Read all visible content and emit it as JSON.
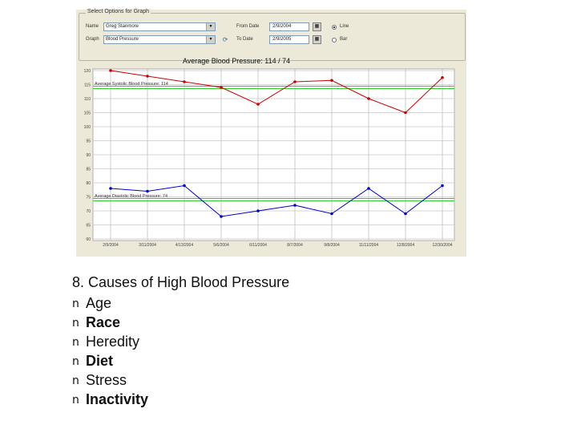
{
  "options": {
    "group_title": "Select Options for Graph",
    "name_label": "Name",
    "name_value": "Greg Stanmore",
    "graph_label": "Graph",
    "graph_value": "Blood Pressure",
    "from_label": "From Date",
    "from_value": "2/9/2004",
    "to_label": "To Date",
    "to_value": "2/9/2005",
    "line_label": "Line",
    "bar_label": "Bar",
    "selected_type": "Line",
    "icons": {
      "calendar": "calendar-icon",
      "refresh": "refresh-icon"
    }
  },
  "chart_data": {
    "type": "line",
    "title": "Average Blood Pressure: 114 / 74",
    "categories": [
      "2/9/2004",
      "3/11/2004",
      "4/13/2004",
      "5/6/2004",
      "6/11/2004",
      "8/7/2004",
      "9/8/2004",
      "11/11/2004",
      "12/8/2004",
      "12/30/2004"
    ],
    "x_index": [
      0,
      1,
      2,
      3,
      4,
      5,
      6,
      7,
      8,
      9
    ],
    "ylim": [
      60,
      120
    ],
    "yticks": [
      60,
      65,
      70,
      75,
      80,
      85,
      90,
      95,
      100,
      105,
      110,
      115,
      120
    ],
    "grid": true,
    "series": [
      {
        "key": "systolic",
        "color": "#cc0000",
        "values": [
          120,
          118,
          116,
          114,
          108,
          116,
          116.5,
          110,
          105,
          117.5
        ]
      },
      {
        "key": "diastolic",
        "color": "#0000cc",
        "values": [
          78,
          77,
          79,
          68,
          70,
          72,
          69,
          78,
          69,
          79
        ]
      }
    ],
    "reference_lines": [
      {
        "label": "Average Systolic Blood Pressure: 114",
        "value": 114,
        "color": "#33cc33"
      },
      {
        "label": "Average Diastolic Blood Pressure: 74",
        "value": 74,
        "color": "#33cc33"
      }
    ]
  },
  "slide": {
    "title": "8. Causes of High Blood Pressure",
    "bullet_symbol": "n",
    "bullets": [
      {
        "text": "Age",
        "bold": false
      },
      {
        "text": "Race",
        "bold": true
      },
      {
        "text": "Heredity",
        "bold": false
      },
      {
        "text": "Diet",
        "bold": true
      },
      {
        "text": "Stress",
        "bold": false
      },
      {
        "text": "Inactivity",
        "bold": true
      }
    ]
  }
}
